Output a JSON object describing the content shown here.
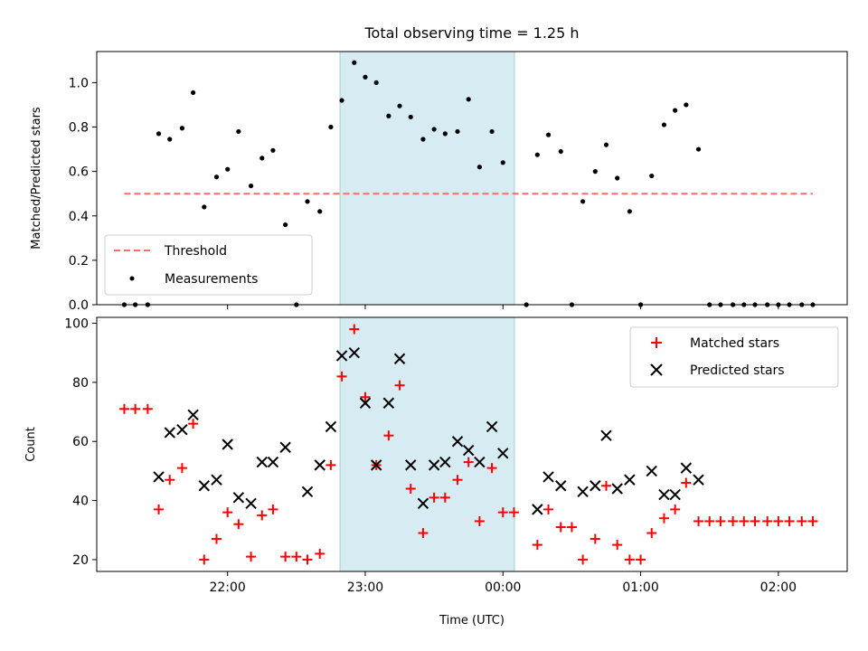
{
  "chart_data": [
    {
      "type": "scatter",
      "panel": "top",
      "title": "Total observing time = 1.25 h",
      "xlabel": "",
      "ylabel": "Matched/Predicted stars",
      "x_unit": "hours_utc",
      "xlim": [
        21.05,
        26.5
      ],
      "ylim": [
        0.0,
        1.14
      ],
      "yticks": [
        0.0,
        0.2,
        0.4,
        0.6,
        0.8,
        1.0
      ],
      "ytick_labels": [
        "0.0",
        "0.2",
        "0.4",
        "0.6",
        "0.8",
        "1.0"
      ],
      "highlight_span": {
        "x": [
          22.8167,
          24.0833
        ],
        "color": "#add8e6"
      },
      "legend": {
        "position": "lower-left"
      },
      "series": [
        {
          "name": "Threshold",
          "kind": "line",
          "color": "#ff6b6b",
          "points": [
            [
              21.25,
              0.5
            ],
            [
              26.25,
              0.5
            ]
          ]
        },
        {
          "name": "Measurements",
          "kind": "scatter",
          "color": "#000000",
          "points": [
            [
              21.25,
              0.0
            ],
            [
              21.33,
              0.0
            ],
            [
              21.42,
              0.0
            ],
            [
              21.5,
              0.77
            ],
            [
              21.58,
              0.745
            ],
            [
              21.67,
              0.795
            ],
            [
              21.75,
              0.955
            ],
            [
              21.83,
              0.44
            ],
            [
              21.92,
              0.575
            ],
            [
              22.0,
              0.61
            ],
            [
              22.08,
              0.78
            ],
            [
              22.17,
              0.535
            ],
            [
              22.25,
              0.66
            ],
            [
              22.33,
              0.695
            ],
            [
              22.42,
              0.36
            ],
            [
              22.5,
              0.0
            ],
            [
              22.58,
              0.465
            ],
            [
              22.67,
              0.42
            ],
            [
              22.75,
              0.8
            ],
            [
              22.83,
              0.92
            ],
            [
              22.92,
              1.09
            ],
            [
              23.0,
              1.025
            ],
            [
              23.08,
              1.0
            ],
            [
              23.17,
              0.85
            ],
            [
              23.25,
              0.895
            ],
            [
              23.33,
              0.845
            ],
            [
              23.42,
              0.745
            ],
            [
              23.5,
              0.79
            ],
            [
              23.58,
              0.77
            ],
            [
              23.67,
              0.78
            ],
            [
              23.75,
              0.925
            ],
            [
              23.83,
              0.62
            ],
            [
              23.92,
              0.78
            ],
            [
              24.0,
              0.64
            ],
            [
              24.17,
              0.0
            ],
            [
              24.25,
              0.675
            ],
            [
              24.33,
              0.765
            ],
            [
              24.42,
              0.69
            ],
            [
              24.5,
              0.0
            ],
            [
              24.58,
              0.465
            ],
            [
              24.67,
              0.6
            ],
            [
              24.75,
              0.72
            ],
            [
              24.83,
              0.57
            ],
            [
              24.92,
              0.42
            ],
            [
              25.0,
              0.0
            ],
            [
              25.08,
              0.58
            ],
            [
              25.17,
              0.81
            ],
            [
              25.25,
              0.875
            ],
            [
              25.33,
              0.9
            ],
            [
              25.42,
              0.7
            ],
            [
              25.5,
              0.0
            ],
            [
              25.58,
              0.0
            ],
            [
              25.67,
              0.0
            ],
            [
              25.75,
              0.0
            ],
            [
              25.83,
              0.0
            ],
            [
              25.92,
              0.0
            ],
            [
              26.0,
              0.0
            ],
            [
              26.08,
              0.0
            ],
            [
              26.17,
              0.0
            ],
            [
              26.25,
              0.0
            ]
          ]
        }
      ]
    },
    {
      "type": "scatter",
      "panel": "bottom",
      "title": "",
      "xlabel": "Time (UTC)",
      "ylabel": "Count",
      "x_unit": "hours_utc",
      "xlim": [
        21.05,
        26.5
      ],
      "ylim": [
        16,
        102
      ],
      "yticks": [
        20,
        40,
        60,
        80,
        100
      ],
      "ytick_labels": [
        "20",
        "40",
        "60",
        "80",
        "100"
      ],
      "xticks": [
        22.0,
        23.0,
        24.0,
        25.0,
        26.0
      ],
      "xtick_labels": [
        "22:00",
        "23:00",
        "00:00",
        "01:00",
        "02:00"
      ],
      "highlight_span": {
        "x": [
          22.8167,
          24.0833
        ],
        "color": "#add8e6"
      },
      "legend": {
        "position": "top-right"
      },
      "series": [
        {
          "name": "Matched stars",
          "kind": "plus",
          "color": "#ff0000",
          "points": [
            [
              21.25,
              71
            ],
            [
              21.33,
              71
            ],
            [
              21.42,
              71
            ],
            [
              21.5,
              37
            ],
            [
              21.58,
              47
            ],
            [
              21.67,
              51
            ],
            [
              21.75,
              66
            ],
            [
              21.83,
              20
            ],
            [
              21.92,
              27
            ],
            [
              22.0,
              36
            ],
            [
              22.08,
              32
            ],
            [
              22.17,
              21
            ],
            [
              22.25,
              35
            ],
            [
              22.33,
              37
            ],
            [
              22.42,
              21
            ],
            [
              22.5,
              21
            ],
            [
              22.58,
              20
            ],
            [
              22.67,
              22
            ],
            [
              22.75,
              52
            ],
            [
              22.83,
              82
            ],
            [
              22.92,
              98
            ],
            [
              23.0,
              75
            ],
            [
              23.08,
              52
            ],
            [
              23.17,
              62
            ],
            [
              23.25,
              79
            ],
            [
              23.33,
              44
            ],
            [
              23.42,
              29
            ],
            [
              23.5,
              41
            ],
            [
              23.58,
              41
            ],
            [
              23.67,
              47
            ],
            [
              23.75,
              53
            ],
            [
              23.83,
              33
            ],
            [
              23.92,
              51
            ],
            [
              24.0,
              36
            ],
            [
              24.08,
              36
            ],
            [
              24.25,
              25
            ],
            [
              24.33,
              37
            ],
            [
              24.42,
              31
            ],
            [
              24.5,
              31
            ],
            [
              24.58,
              20
            ],
            [
              24.67,
              27
            ],
            [
              24.75,
              45
            ],
            [
              24.83,
              25
            ],
            [
              24.92,
              20
            ],
            [
              25.0,
              20
            ],
            [
              25.08,
              29
            ],
            [
              25.17,
              34
            ],
            [
              25.25,
              37
            ],
            [
              25.33,
              46
            ],
            [
              25.42,
              33
            ],
            [
              25.5,
              33
            ],
            [
              25.58,
              33
            ],
            [
              25.67,
              33
            ],
            [
              25.75,
              33
            ],
            [
              25.83,
              33
            ],
            [
              25.92,
              33
            ],
            [
              26.0,
              33
            ],
            [
              26.08,
              33
            ],
            [
              26.17,
              33
            ],
            [
              26.25,
              33
            ]
          ]
        },
        {
          "name": "Predicted stars",
          "kind": "x",
          "color": "#000000",
          "points": [
            [
              21.5,
              48
            ],
            [
              21.58,
              63
            ],
            [
              21.67,
              64
            ],
            [
              21.75,
              69
            ],
            [
              21.83,
              45
            ],
            [
              21.92,
              47
            ],
            [
              22.0,
              59
            ],
            [
              22.08,
              41
            ],
            [
              22.17,
              39
            ],
            [
              22.25,
              53
            ],
            [
              22.33,
              53
            ],
            [
              22.42,
              58
            ],
            [
              22.58,
              43
            ],
            [
              22.67,
              52
            ],
            [
              22.75,
              65
            ],
            [
              22.83,
              89
            ],
            [
              22.92,
              90
            ],
            [
              23.0,
              73
            ],
            [
              23.08,
              52
            ],
            [
              23.17,
              73
            ],
            [
              23.25,
              88
            ],
            [
              23.33,
              52
            ],
            [
              23.42,
              39
            ],
            [
              23.5,
              52
            ],
            [
              23.58,
              53
            ],
            [
              23.67,
              60
            ],
            [
              23.75,
              57
            ],
            [
              23.83,
              53
            ],
            [
              23.92,
              65
            ],
            [
              24.0,
              56
            ],
            [
              24.25,
              37
            ],
            [
              24.33,
              48
            ],
            [
              24.42,
              45
            ],
            [
              24.58,
              43
            ],
            [
              24.67,
              45
            ],
            [
              24.75,
              62
            ],
            [
              24.83,
              44
            ],
            [
              24.92,
              47
            ],
            [
              25.08,
              50
            ],
            [
              25.17,
              42
            ],
            [
              25.25,
              42
            ],
            [
              25.33,
              51
            ],
            [
              25.42,
              47
            ]
          ]
        }
      ]
    }
  ]
}
